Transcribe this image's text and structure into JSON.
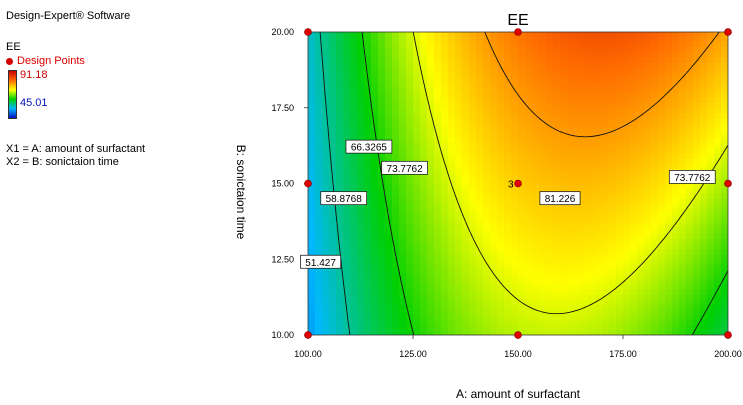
{
  "sidebar": {
    "software": "Design-Expert® Software",
    "response": "EE",
    "design_points_label": "Design Points",
    "max_value": "91.18",
    "min_value": "45.01",
    "factor_x1": "X1 = A: amount of surfactant",
    "factor_x2": "X2 = B: sonictaion time"
  },
  "chart_data": {
    "type": "contour",
    "title": "EE",
    "xlabel": "A: amount of surfactant",
    "ylabel": "B: sonictaion time",
    "xlim": [
      100,
      200
    ],
    "ylim": [
      10,
      20
    ],
    "x_ticks": [
      "100.00",
      "125.00",
      "150.00",
      "175.00",
      "200.00"
    ],
    "y_ticks": [
      "10.00",
      "12.50",
      "15.00",
      "17.50",
      "20.00"
    ],
    "colorscale": {
      "min": 45.01,
      "max": 91.18
    },
    "contour_levels": [
      "51.427",
      "58.8768",
      "66.3265",
      "73.7762",
      "81.226",
      "73.7762"
    ],
    "design_points": [
      {
        "x": 100,
        "y": 10
      },
      {
        "x": 150,
        "y": 10
      },
      {
        "x": 200,
        "y": 10
      },
      {
        "x": 100,
        "y": 15
      },
      {
        "x": 150,
        "y": 15
      },
      {
        "x": 200,
        "y": 15
      },
      {
        "x": 100,
        "y": 20
      },
      {
        "x": 150,
        "y": 20
      },
      {
        "x": 200,
        "y": 20
      }
    ],
    "replicate_label": "3",
    "center_point": {
      "x": 150,
      "y": 15
    }
  }
}
